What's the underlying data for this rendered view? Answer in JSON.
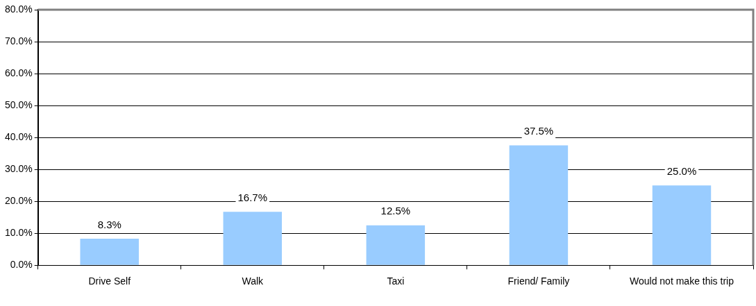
{
  "chart_data": {
    "type": "bar",
    "categories": [
      "Drive Self",
      "Walk",
      "Taxi",
      "Friend/ Family",
      "Would not make this trip"
    ],
    "values": [
      8.3,
      16.7,
      12.5,
      37.5,
      25.0
    ],
    "value_labels": [
      "8.3%",
      "16.7%",
      "12.5%",
      "37.5%",
      "25.0%"
    ],
    "color": "#99ccff",
    "ylim": [
      0,
      80
    ],
    "yticks": [
      {
        "value": 0,
        "label": "0.0%"
      },
      {
        "value": 10,
        "label": "10.0%"
      },
      {
        "value": 20,
        "label": "20.0%"
      },
      {
        "value": 30,
        "label": "30.0%"
      },
      {
        "value": 40,
        "label": "40.0%"
      },
      {
        "value": 50,
        "label": "50.0%"
      },
      {
        "value": 60,
        "label": "60.0%"
      },
      {
        "value": 70,
        "label": "70.0%"
      },
      {
        "value": 80,
        "label": "80.0%"
      }
    ],
    "grid": "y",
    "legend": false
  }
}
